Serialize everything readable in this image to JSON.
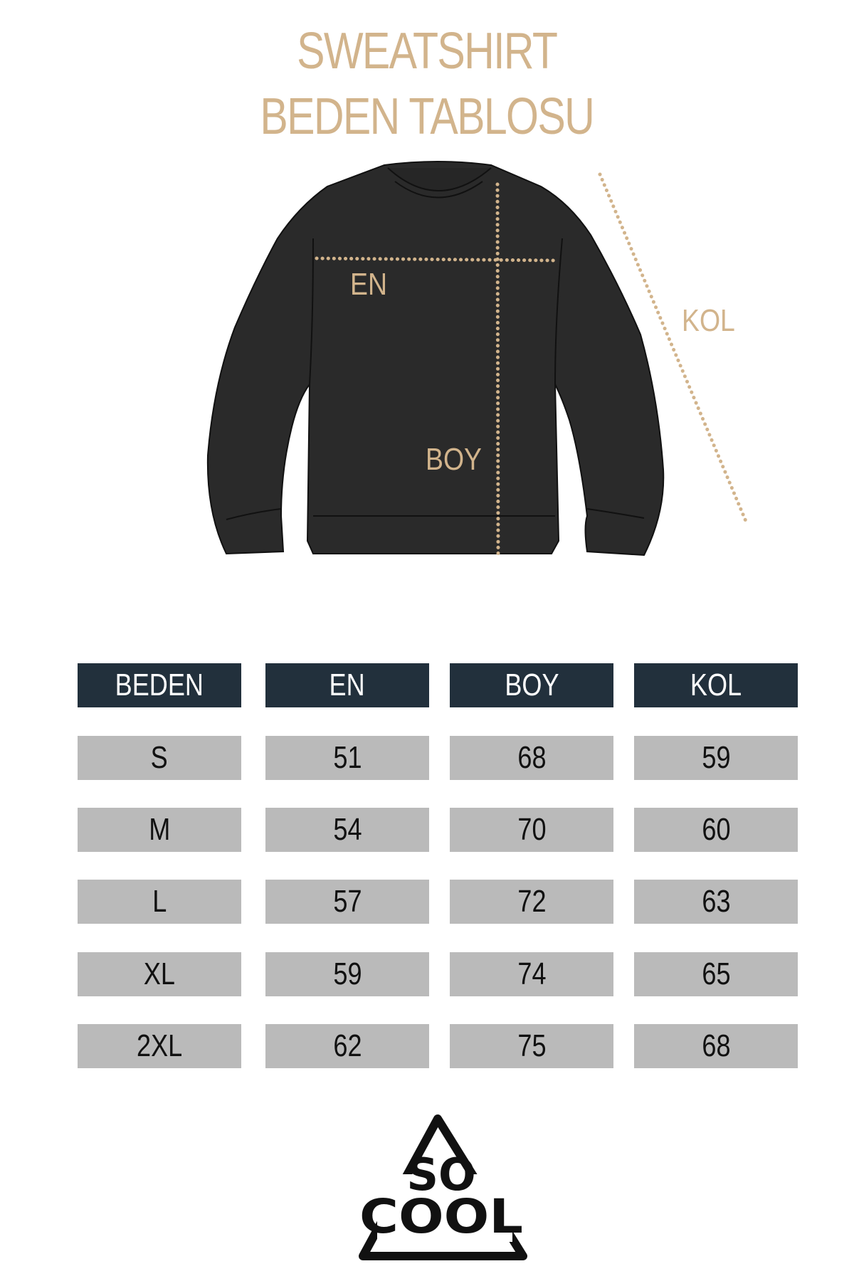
{
  "title": {
    "line1": "SWEATSHIRT",
    "line2": "BEDEN TABLOSU"
  },
  "diagram": {
    "labels": {
      "en": "EN",
      "boy": "BOY",
      "kol": "KOL"
    },
    "garment_color": "#2a2a2a",
    "accent_color": "#d2b48c"
  },
  "table": {
    "headers": [
      "BEDEN",
      "EN",
      "BOY",
      "KOL"
    ],
    "rows": [
      [
        "S",
        "51",
        "68",
        "59"
      ],
      [
        "M",
        "54",
        "70",
        "60"
      ],
      [
        "L",
        "57",
        "72",
        "63"
      ],
      [
        "XL",
        "59",
        "74",
        "65"
      ],
      [
        "2XL",
        "62",
        "75",
        "68"
      ]
    ],
    "header_color": "#22303c",
    "cell_color": "#bababa"
  },
  "logo": {
    "text": "SO COOL"
  }
}
